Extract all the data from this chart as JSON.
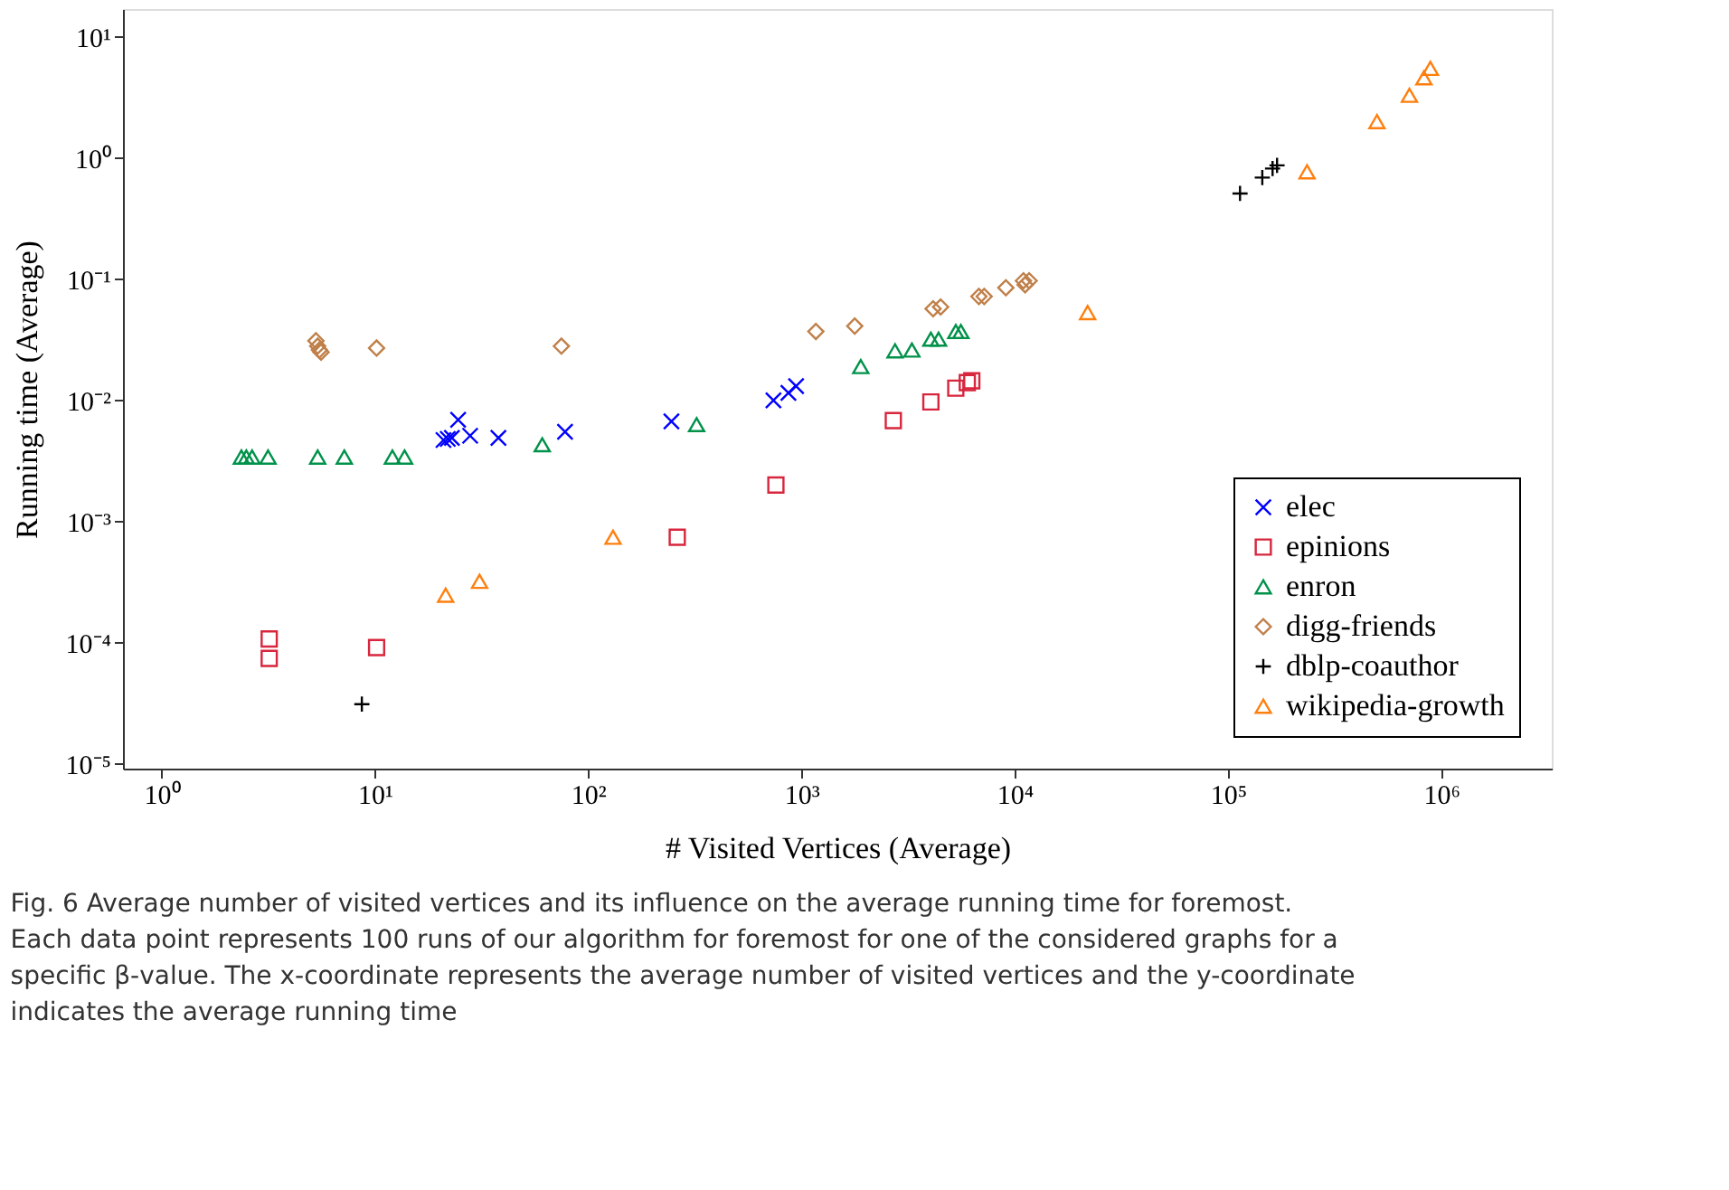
{
  "chart_data": {
    "type": "scatter",
    "xlabel": "# Visited Vertices (Average)",
    "ylabel": "Running time (Average)",
    "log": "xy",
    "grid": false,
    "legend": "bottom right",
    "xlim": [
      0.66,
      3300000
    ],
    "ylim": [
      9.1e-06,
      17
    ],
    "xticks": [
      {
        "value": 1,
        "label": "10⁰"
      },
      {
        "value": 10,
        "label": "10¹"
      },
      {
        "value": 100,
        "label": "10²"
      },
      {
        "value": 1000,
        "label": "10³"
      },
      {
        "value": 10000,
        "label": "10⁴"
      },
      {
        "value": 100000,
        "label": "10⁵"
      },
      {
        "value": 1000000,
        "label": "10⁶"
      }
    ],
    "yticks": [
      {
        "value": 1e-05,
        "label": "10⁻⁵"
      },
      {
        "value": 0.0001,
        "label": "10⁻⁴"
      },
      {
        "value": 0.001,
        "label": "10⁻³"
      },
      {
        "value": 0.01,
        "label": "10⁻²"
      },
      {
        "value": 0.1,
        "label": "10⁻¹"
      },
      {
        "value": 1,
        "label": "10⁰"
      },
      {
        "value": 10,
        "label": "10¹"
      }
    ],
    "series": [
      {
        "name": "elec",
        "color": "#0000ff",
        "marker": "cross",
        "x": [
          21,
          22,
          23,
          24.6,
          28,
          38,
          78,
          246,
          740,
          870,
          945
        ],
        "values": [
          0.0047,
          0.0048,
          0.0049,
          0.0069,
          0.0051,
          0.0049,
          0.0055,
          0.0067,
          0.01,
          0.0115,
          0.0131
        ]
      },
      {
        "name": "epinions",
        "color": "#d7263d",
        "marker": "square",
        "x": [
          3.2,
          3.2,
          10.2,
          262,
          760,
          2700,
          4050,
          5300,
          6000,
          6300
        ],
        "values": [
          0.000107,
          7.4e-05,
          9.1e-05,
          0.00074,
          0.002,
          0.0068,
          0.0097,
          0.0126,
          0.014,
          0.0145
        ]
      },
      {
        "name": "enron",
        "color": "#00924a",
        "marker": "triangle",
        "x": [
          2.37,
          2.5,
          2.66,
          3.16,
          5.4,
          7.2,
          12.1,
          13.8,
          61,
          323,
          1900,
          2750,
          3300,
          4050,
          4400,
          5300,
          5600
        ],
        "values": [
          0.0034,
          0.0034,
          0.0034,
          0.0034,
          0.0034,
          0.0034,
          0.0034,
          0.0034,
          0.0043,
          0.0063,
          0.019,
          0.0256,
          0.026,
          0.032,
          0.032,
          0.037,
          0.037
        ]
      },
      {
        "name": "digg-friends",
        "color": "#c0804a",
        "marker": "diamond",
        "x": [
          5.3,
          5.4,
          5.5,
          5.6,
          10.2,
          75,
          1170,
          1780,
          4150,
          4500,
          6800,
          7200,
          9100,
          11000,
          11200,
          11700
        ],
        "values": [
          0.031,
          0.028,
          0.026,
          0.025,
          0.027,
          0.028,
          0.037,
          0.041,
          0.057,
          0.059,
          0.072,
          0.072,
          0.085,
          0.097,
          0.09,
          0.097
        ]
      },
      {
        "name": "dblp-coauthor",
        "color": "#000000",
        "marker": "plus",
        "x": [
          8.7,
          114000,
          145000,
          162000,
          170000
        ],
        "values": [
          3.1e-05,
          0.51,
          0.69,
          0.82,
          0.87
        ]
      },
      {
        "name": "wikipedia-growth",
        "color": "#ff7f0e",
        "marker": "triangle",
        "x": [
          21.5,
          31,
          131,
          22000,
          235000,
          500000,
          710000,
          830000,
          890000
        ],
        "values": [
          0.000246,
          0.00032,
          0.00074,
          0.053,
          0.77,
          2.0,
          3.3,
          4.6,
          5.5
        ]
      }
    ],
    "annotations": [
      "Fig. 6  Average number of visited vertices and its influence on the average running time for foremost. Each data point represents 100 runs of our algorithm for foremost for one of the considered graphs for a specific β-value. The x-coordinate represents the average number of visited vertices and the y-coordinate indicates the average running time"
    ]
  }
}
